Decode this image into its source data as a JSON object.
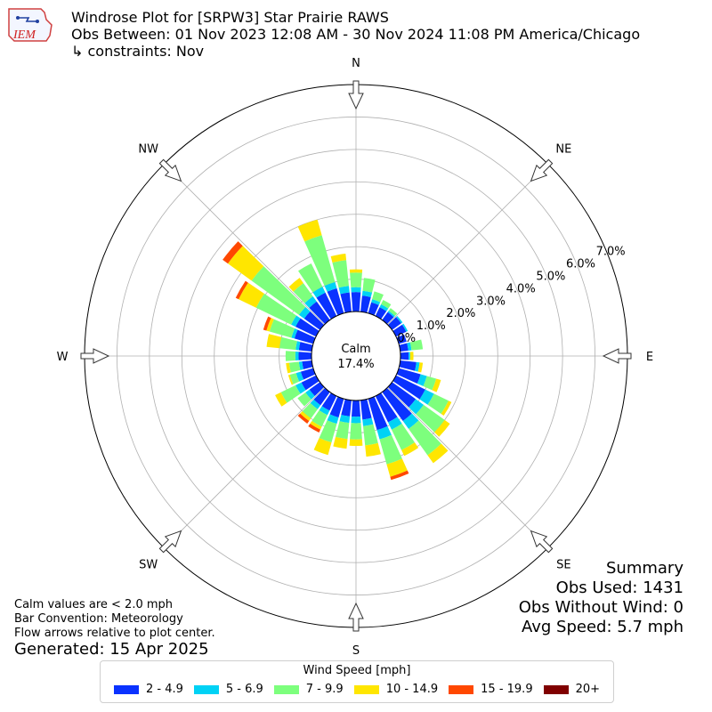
{
  "header": {
    "title": "Windrose Plot for [SRPW3] Star Prairie RAWS",
    "subtitle": "Obs Between: 01 Nov 2023 12:08 AM - 30 Nov 2024 11:08 PM America/Chicago",
    "constraints": "↳ constraints: Nov",
    "logo_text": "IEM"
  },
  "notes": {
    "calm_note": "Calm values are < 2.0 mph",
    "bar_convention": "Bar Convention: Meteorology",
    "flow_note": "Flow arrows relative to plot center.",
    "generated": "Generated: 15 Apr 2025"
  },
  "summary": {
    "heading": "Summary",
    "obs_used": "Obs Used: 1431",
    "obs_without_wind": "Obs Without Wind: 0",
    "avg_speed": "Avg Speed: 5.7 mph"
  },
  "chart_data": {
    "type": "windrose",
    "calm_label": "Calm",
    "calm_value": "17.4%",
    "directions": [
      "N",
      "NE",
      "E",
      "SE",
      "S",
      "SW",
      "W",
      "NW"
    ],
    "radial_ticks": [
      "0.0%",
      "1.0%",
      "2.0%",
      "3.0%",
      "4.0%",
      "5.0%",
      "6.0%",
      "7.0%"
    ],
    "rmax": 7.0,
    "legend_title": "Wind Speed [mph]",
    "bins": [
      {
        "label": "2 - 4.9",
        "color": "#0a32ff"
      },
      {
        "label": "5 - 6.9",
        "color": "#00d2f5"
      },
      {
        "label": "7 - 9.9",
        "color": "#7dff7d"
      },
      {
        "label": "10 - 14.9",
        "color": "#ffe600"
      },
      {
        "label": "15 - 19.9",
        "color": "#ff4800"
      },
      {
        "label": "20+",
        "color": "#800000"
      }
    ],
    "sector_degrees": [
      0,
      10,
      20,
      30,
      40,
      50,
      60,
      70,
      80,
      90,
      100,
      110,
      120,
      130,
      140,
      150,
      160,
      170,
      180,
      190,
      200,
      210,
      220,
      230,
      240,
      250,
      260,
      270,
      280,
      290,
      300,
      310,
      320,
      330,
      340,
      350
    ],
    "sectors": [
      [
        0.6,
        0.15,
        0.45,
        0.1,
        0.0,
        0.0
      ],
      [
        0.5,
        0.15,
        0.4,
        0.0,
        0.0,
        0.0
      ],
      [
        0.35,
        0.1,
        0.25,
        0.0,
        0.0,
        0.0
      ],
      [
        0.3,
        0.1,
        0.15,
        0.0,
        0.0,
        0.0
      ],
      [
        0.3,
        0.05,
        0.1,
        0.0,
        0.0,
        0.0
      ],
      [
        0.35,
        0.05,
        0.0,
        0.0,
        0.0,
        0.0
      ],
      [
        0.35,
        0.05,
        0.0,
        0.0,
        0.0,
        0.0
      ],
      [
        0.25,
        0.0,
        0.0,
        0.0,
        0.0,
        0.0
      ],
      [
        0.25,
        0.1,
        0.35,
        0.0,
        0.0,
        0.0
      ],
      [
        0.25,
        0.05,
        0.0,
        0.1,
        0.0,
        0.0
      ],
      [
        0.5,
        0.1,
        0.0,
        0.1,
        0.0,
        0.0
      ],
      [
        0.7,
        0.2,
        0.3,
        0.15,
        0.0,
        0.0
      ],
      [
        1.0,
        0.3,
        0.5,
        0.1,
        0.0,
        0.0
      ],
      [
        0.9,
        0.3,
        0.8,
        0.2,
        0.0,
        0.0
      ],
      [
        1.1,
        0.3,
        1.0,
        0.3,
        0.0,
        0.0
      ],
      [
        0.9,
        0.25,
        0.7,
        0.2,
        0.0,
        0.0
      ],
      [
        1.0,
        0.3,
        0.8,
        0.4,
        0.1,
        0.0
      ],
      [
        0.6,
        0.2,
        0.6,
        0.35,
        0.0,
        0.0
      ],
      [
        0.5,
        0.2,
        0.5,
        0.2,
        0.0,
        0.0
      ],
      [
        0.5,
        0.2,
        0.5,
        0.3,
        0.0,
        0.0
      ],
      [
        0.6,
        0.2,
        0.6,
        0.4,
        0.0,
        0.0
      ],
      [
        0.5,
        0.15,
        0.4,
        0.1,
        0.1,
        0.0
      ],
      [
        0.5,
        0.15,
        0.35,
        0.1,
        0.1,
        0.0
      ],
      [
        0.4,
        0.15,
        0.3,
        0.0,
        0.0,
        0.0
      ],
      [
        0.5,
        0.2,
        0.5,
        0.2,
        0.0,
        0.0
      ],
      [
        0.4,
        0.15,
        0.2,
        0.05,
        0.0,
        0.0
      ],
      [
        0.3,
        0.1,
        0.3,
        0.1,
        0.0,
        0.0
      ],
      [
        0.4,
        0.1,
        0.3,
        0.0,
        0.0,
        0.0
      ],
      [
        0.4,
        0.1,
        0.5,
        0.4,
        0.0,
        0.0
      ],
      [
        0.6,
        0.1,
        0.7,
        0.1,
        0.1,
        0.0
      ],
      [
        0.7,
        0.15,
        1.2,
        0.6,
        0.1,
        0.0
      ],
      [
        0.6,
        0.2,
        1.8,
        0.9,
        0.2,
        0.0
      ],
      [
        0.7,
        0.2,
        0.5,
        0.2,
        0.0,
        0.0
      ],
      [
        0.8,
        0.2,
        0.8,
        0.0,
        0.0,
        0.0
      ],
      [
        0.8,
        0.2,
        1.5,
        0.5,
        0.0,
        0.0
      ],
      [
        0.6,
        0.2,
        0.8,
        0.2,
        0.0,
        0.0
      ]
    ]
  }
}
